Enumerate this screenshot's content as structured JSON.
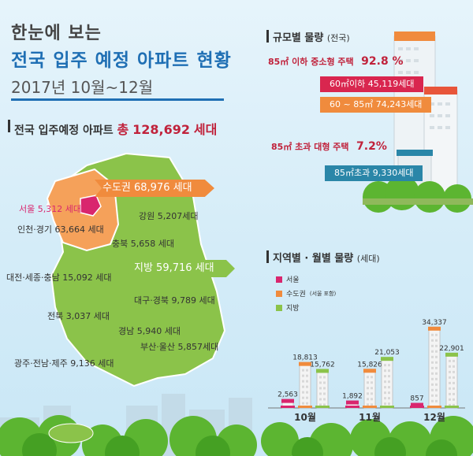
{
  "header": {
    "line1": "한눈에 보는",
    "line2": "전국 입주 예정 아파트 현황",
    "period": "2017년  10월~12월"
  },
  "national": {
    "label": "전국 입주예정 아파트",
    "total_prefix": "총",
    "total": "128,692",
    "unit": "세대"
  },
  "map": {
    "capital": "수도권 68,976 세대",
    "non_capital": "지방  59,716 세대",
    "seoul": "서울 5,312 세대",
    "regions": [
      {
        "key": "incheon",
        "text": "인천·경기 63,664 세대"
      },
      {
        "key": "gangwon",
        "text": "강원 5,207세대"
      },
      {
        "key": "chungbuk",
        "text": "충북 5,658 세대"
      },
      {
        "key": "daejeon",
        "text": "대전·세종·충남 15,092 세대"
      },
      {
        "key": "daegu",
        "text": "대구·경북 9,789 세대"
      },
      {
        "key": "jeonbuk",
        "text": "전북 3,037 세대"
      },
      {
        "key": "gyeongnam",
        "text": "경남 5,940 세대"
      },
      {
        "key": "busan",
        "text": "부산·울산 5,857세대"
      },
      {
        "key": "gwangju",
        "text": "광주·전남·제주 9,136 세대"
      }
    ]
  },
  "size_section": {
    "title": "규모별 물량",
    "title_sub": "(전국)",
    "small_label": "85㎡ 이하 중소형 주택",
    "small_pct": "92.8 %",
    "small_tags": [
      "60㎡이하  45,119세대",
      "60 ~ 85㎡  74,243세대"
    ],
    "large_label": "85㎡  초과 대형 주택",
    "large_pct": "7.2%",
    "large_tag": "85㎡초과  9,330세대"
  },
  "colors": {
    "seoul": "#d9266e",
    "capital": "#f08b3d",
    "local": "#8bc34a",
    "title_blue": "#1f6fb4",
    "accent_red": "#c0223b"
  },
  "chart_data": {
    "type": "bar",
    "title": "지역별 · 월별 물량",
    "title_unit": "(세대)",
    "categories": [
      "10월",
      "11월",
      "12월"
    ],
    "series": [
      {
        "name": "서울",
        "values": [
          2563,
          1892,
          857
        ]
      },
      {
        "name": "수도권",
        "name_note": "(서울 포함)",
        "values": [
          18813,
          15826,
          34337
        ]
      },
      {
        "name": "지방",
        "values": [
          15762,
          21053,
          22901
        ]
      }
    ],
    "value_labels": [
      [
        "2,563",
        "1,892",
        "857"
      ],
      [
        "18,813",
        "15,826",
        "34,337"
      ],
      [
        "15,762",
        "21,053",
        "22,901"
      ]
    ],
    "ylim": [
      0,
      36000
    ],
    "legend": "top-left"
  }
}
